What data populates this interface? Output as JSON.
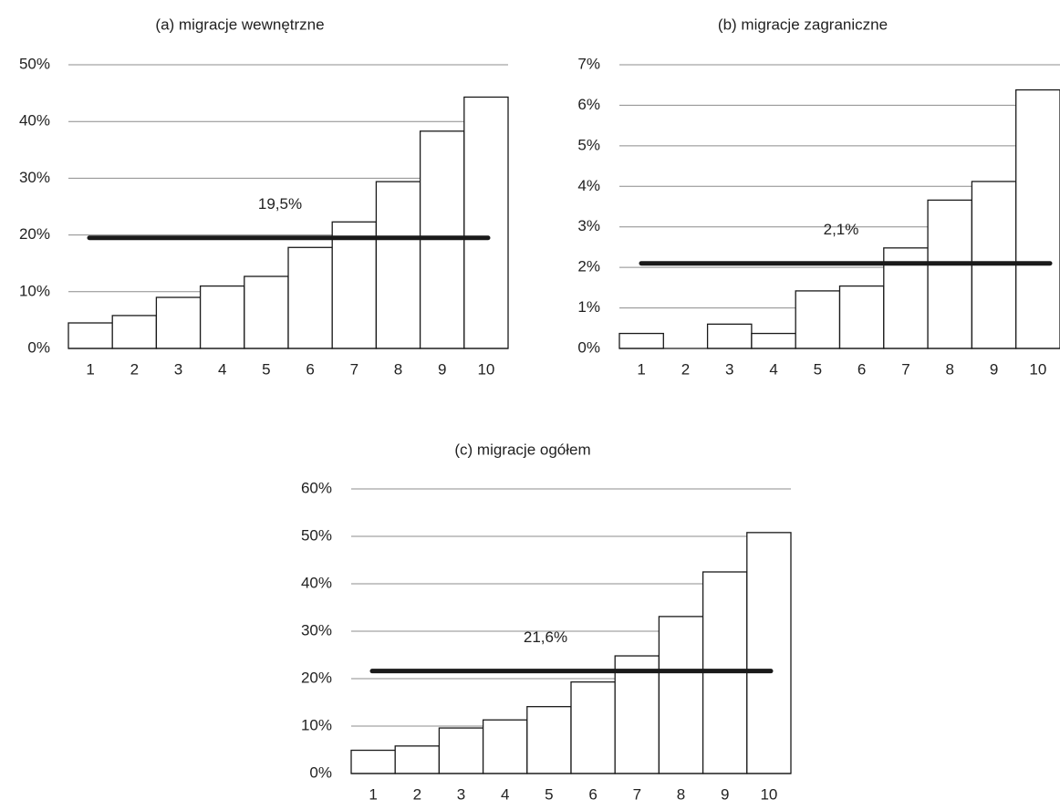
{
  "colors": {
    "bar_fill": "#ffffff",
    "bar_stroke": "#1a1a1a",
    "gridline": "#8c8c8c",
    "mean_line": "#1a1a1a",
    "text": "#222222"
  },
  "chart_data": [
    {
      "type": "bar",
      "title": "(a) migracje wewnętrzne",
      "xlabel": "",
      "ylabel": "",
      "categories": [
        "1",
        "2",
        "3",
        "4",
        "5",
        "6",
        "7",
        "8",
        "9",
        "10"
      ],
      "values": [
        4.5,
        5.8,
        9.0,
        11.0,
        12.7,
        17.8,
        22.3,
        29.4,
        38.3,
        44.3
      ],
      "ylim": [
        0,
        50
      ],
      "yticks": [
        0,
        10,
        20,
        30,
        40,
        50
      ],
      "ytick_labels": [
        "0%",
        "10%",
        "20%",
        "30%",
        "40%",
        "50%"
      ],
      "mean_value": 19.5,
      "mean_label": "19,5%",
      "grid": true,
      "legend": "none"
    },
    {
      "type": "bar",
      "title": "(b) migracje zagraniczne",
      "xlabel": "",
      "ylabel": "",
      "categories": [
        "1",
        "2",
        "3",
        "4",
        "5",
        "6",
        "7",
        "8",
        "9",
        "10"
      ],
      "values": [
        0.37,
        0.0,
        0.6,
        0.37,
        1.42,
        1.54,
        2.48,
        3.66,
        4.12,
        6.38
      ],
      "ylim": [
        0,
        7
      ],
      "yticks": [
        0,
        1,
        2,
        3,
        4,
        5,
        6,
        7
      ],
      "ytick_labels": [
        "0%",
        "1%",
        "2%",
        "3%",
        "4%",
        "5%",
        "6%",
        "7%"
      ],
      "mean_value": 2.1,
      "mean_label": "2,1%",
      "grid": true,
      "legend": "none"
    },
    {
      "type": "bar",
      "title": "(c) migracje ogółem",
      "xlabel": "",
      "ylabel": "",
      "categories": [
        "1",
        "2",
        "3",
        "4",
        "5",
        "6",
        "7",
        "8",
        "9",
        "10"
      ],
      "values": [
        4.9,
        5.8,
        9.6,
        11.3,
        14.1,
        19.3,
        24.8,
        33.1,
        42.5,
        50.8
      ],
      "ylim": [
        0,
        60
      ],
      "yticks": [
        0,
        10,
        20,
        30,
        40,
        50,
        60
      ],
      "ytick_labels": [
        "0%",
        "10%",
        "20%",
        "30%",
        "40%",
        "50%",
        "60%"
      ],
      "mean_value": 21.6,
      "mean_label": "21,6%",
      "grid": true,
      "legend": "none"
    }
  ]
}
